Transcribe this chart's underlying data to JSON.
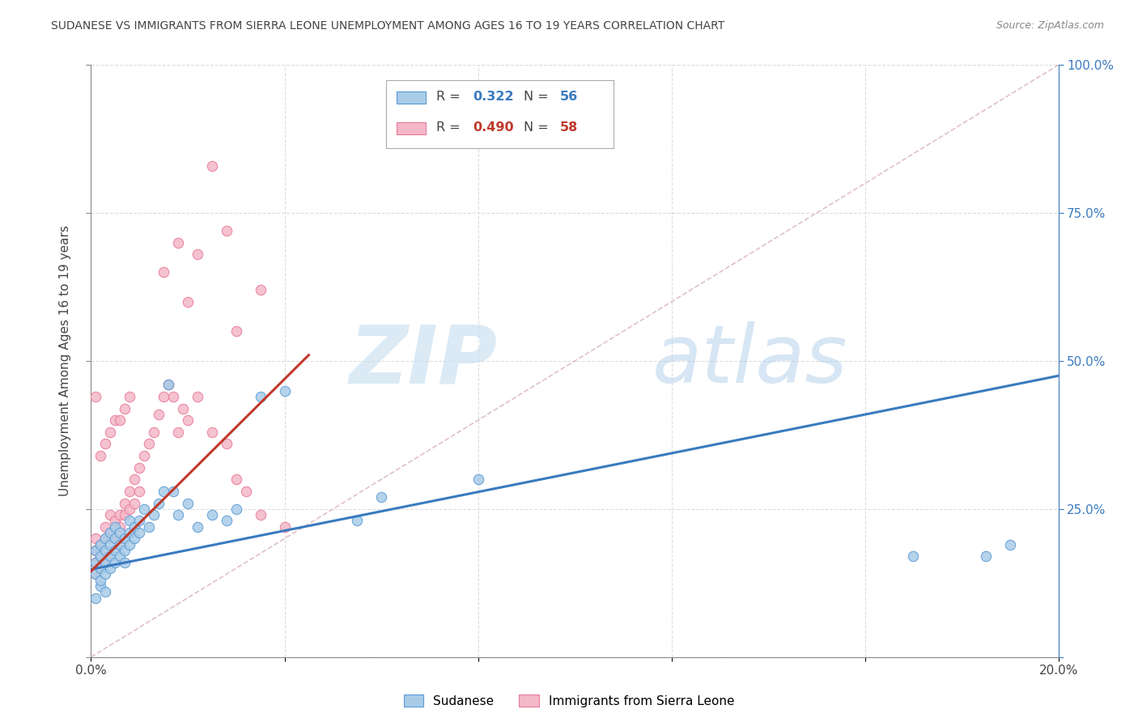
{
  "title": "SUDANESE VS IMMIGRANTS FROM SIERRA LEONE UNEMPLOYMENT AMONG AGES 16 TO 19 YEARS CORRELATION CHART",
  "source": "Source: ZipAtlas.com",
  "ylabel": "Unemployment Among Ages 16 to 19 years",
  "watermark_zip": "ZIP",
  "watermark_atlas": "atlas",
  "blue_R": 0.322,
  "blue_N": 56,
  "pink_R": 0.49,
  "pink_N": 58,
  "blue_dot_color": "#a8cce8",
  "blue_edge_color": "#5b9bd5",
  "pink_dot_color": "#f4b8c8",
  "pink_edge_color": "#e87a9a",
  "blue_line_color": "#3a7abf",
  "pink_line_color": "#c0392b",
  "blue_trend_x0": 0.0,
  "blue_trend_y0": 0.148,
  "blue_trend_x1": 0.2,
  "blue_trend_y1": 0.475,
  "pink_trend_x0": 0.0,
  "pink_trend_y0": 0.145,
  "pink_trend_x1": 0.045,
  "pink_trend_y1": 0.51,
  "xlim": [
    0.0,
    0.2
  ],
  "ylim": [
    0.0,
    1.0
  ],
  "blue_scatter_x": [
    0.001,
    0.001,
    0.001,
    0.001,
    0.002,
    0.002,
    0.002,
    0.002,
    0.002,
    0.003,
    0.003,
    0.003,
    0.003,
    0.003,
    0.004,
    0.004,
    0.004,
    0.004,
    0.005,
    0.005,
    0.005,
    0.005,
    0.006,
    0.006,
    0.006,
    0.007,
    0.007,
    0.007,
    0.008,
    0.008,
    0.008,
    0.009,
    0.009,
    0.01,
    0.01,
    0.011,
    0.012,
    0.013,
    0.014,
    0.015,
    0.016,
    0.017,
    0.018,
    0.02,
    0.022,
    0.025,
    0.028,
    0.03,
    0.035,
    0.04,
    0.055,
    0.06,
    0.08,
    0.17,
    0.185,
    0.19
  ],
  "blue_scatter_y": [
    0.14,
    0.16,
    0.18,
    0.1,
    0.15,
    0.17,
    0.19,
    0.12,
    0.13,
    0.16,
    0.18,
    0.2,
    0.14,
    0.11,
    0.17,
    0.19,
    0.21,
    0.15,
    0.16,
    0.18,
    0.2,
    0.22,
    0.17,
    0.19,
    0.21,
    0.18,
    0.2,
    0.16,
    0.19,
    0.21,
    0.23,
    0.2,
    0.22,
    0.21,
    0.23,
    0.25,
    0.22,
    0.24,
    0.26,
    0.28,
    0.46,
    0.28,
    0.24,
    0.26,
    0.22,
    0.24,
    0.23,
    0.25,
    0.44,
    0.45,
    0.23,
    0.27,
    0.3,
    0.17,
    0.17,
    0.19
  ],
  "pink_scatter_x": [
    0.001,
    0.001,
    0.001,
    0.001,
    0.001,
    0.002,
    0.002,
    0.002,
    0.002,
    0.003,
    0.003,
    0.003,
    0.003,
    0.004,
    0.004,
    0.004,
    0.004,
    0.005,
    0.005,
    0.005,
    0.006,
    0.006,
    0.006,
    0.007,
    0.007,
    0.007,
    0.008,
    0.008,
    0.008,
    0.009,
    0.009,
    0.01,
    0.01,
    0.011,
    0.012,
    0.013,
    0.014,
    0.015,
    0.016,
    0.017,
    0.018,
    0.019,
    0.02,
    0.022,
    0.025,
    0.028,
    0.03,
    0.032,
    0.035,
    0.04,
    0.015,
    0.018,
    0.02,
    0.022,
    0.025,
    0.028,
    0.03,
    0.035
  ],
  "pink_scatter_y": [
    0.14,
    0.16,
    0.18,
    0.2,
    0.44,
    0.15,
    0.17,
    0.19,
    0.34,
    0.16,
    0.2,
    0.22,
    0.36,
    0.17,
    0.21,
    0.24,
    0.38,
    0.2,
    0.23,
    0.4,
    0.22,
    0.24,
    0.4,
    0.24,
    0.26,
    0.42,
    0.25,
    0.28,
    0.44,
    0.26,
    0.3,
    0.28,
    0.32,
    0.34,
    0.36,
    0.38,
    0.41,
    0.44,
    0.46,
    0.44,
    0.38,
    0.42,
    0.4,
    0.44,
    0.38,
    0.36,
    0.3,
    0.28,
    0.24,
    0.22,
    0.65,
    0.7,
    0.6,
    0.68,
    0.83,
    0.72,
    0.55,
    0.62
  ],
  "diag_line_color": "#ddbbbb",
  "background_color": "#ffffff",
  "grid_color": "#dddddd"
}
